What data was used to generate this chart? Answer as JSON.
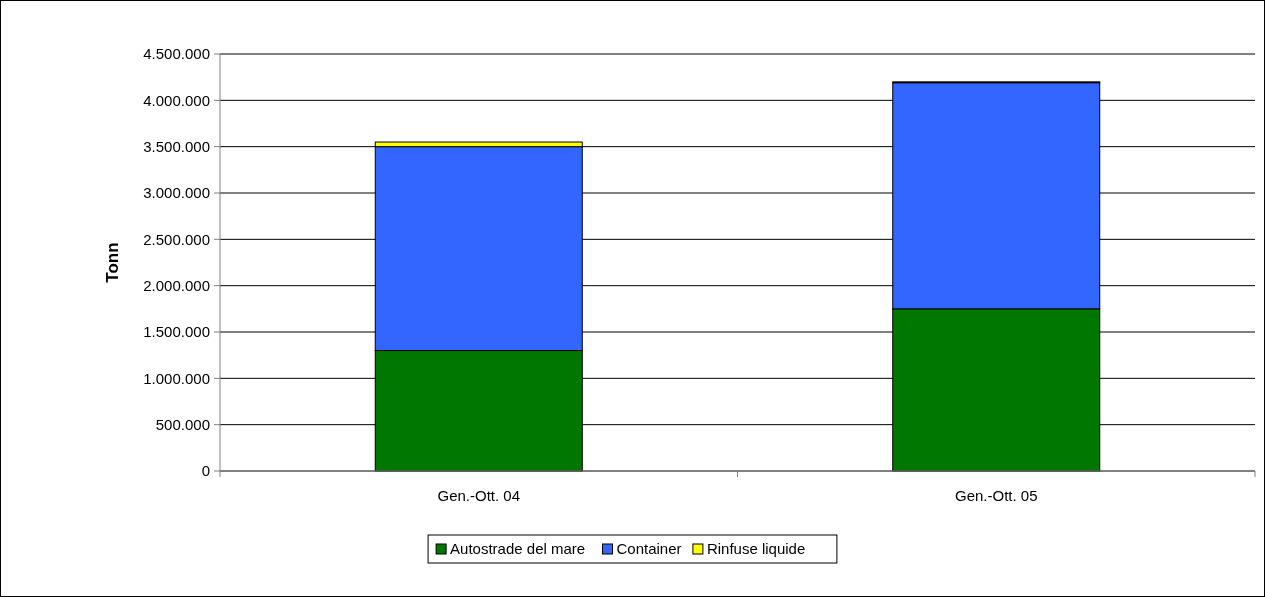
{
  "chart_data": {
    "type": "bar",
    "ylabel": "Tonn",
    "categories": [
      "Gen.-Ott. 04",
      "Gen.-Ott. 05"
    ],
    "stacked": true,
    "series": [
      {
        "name": "Autostrade del mare",
        "color": "#007700",
        "values": [
          1300000,
          1750000
        ]
      },
      {
        "name": "Container",
        "color": "#3366ff",
        "values": [
          2200000,
          2440000
        ]
      },
      {
        "name": "Rinfuse liquide",
        "color": "#ffff00",
        "values": [
          50000,
          10000
        ]
      }
    ],
    "ylim": [
      0,
      4500000
    ],
    "yticks": [
      {
        "value": 0,
        "label": "0"
      },
      {
        "value": 500000,
        "label": "500.000"
      },
      {
        "value": 1000000,
        "label": "1.000.000"
      },
      {
        "value": 1500000,
        "label": "1.500.000"
      },
      {
        "value": 2000000,
        "label": "2.000.000"
      },
      {
        "value": 2500000,
        "label": "2.500.000"
      },
      {
        "value": 3000000,
        "label": "3.000.000"
      },
      {
        "value": 3500000,
        "label": "3.500.000"
      },
      {
        "value": 4000000,
        "label": "4.000.000"
      },
      {
        "value": 4500000,
        "label": "4.500.000"
      }
    ],
    "grid": "y",
    "legend": "bottom"
  }
}
